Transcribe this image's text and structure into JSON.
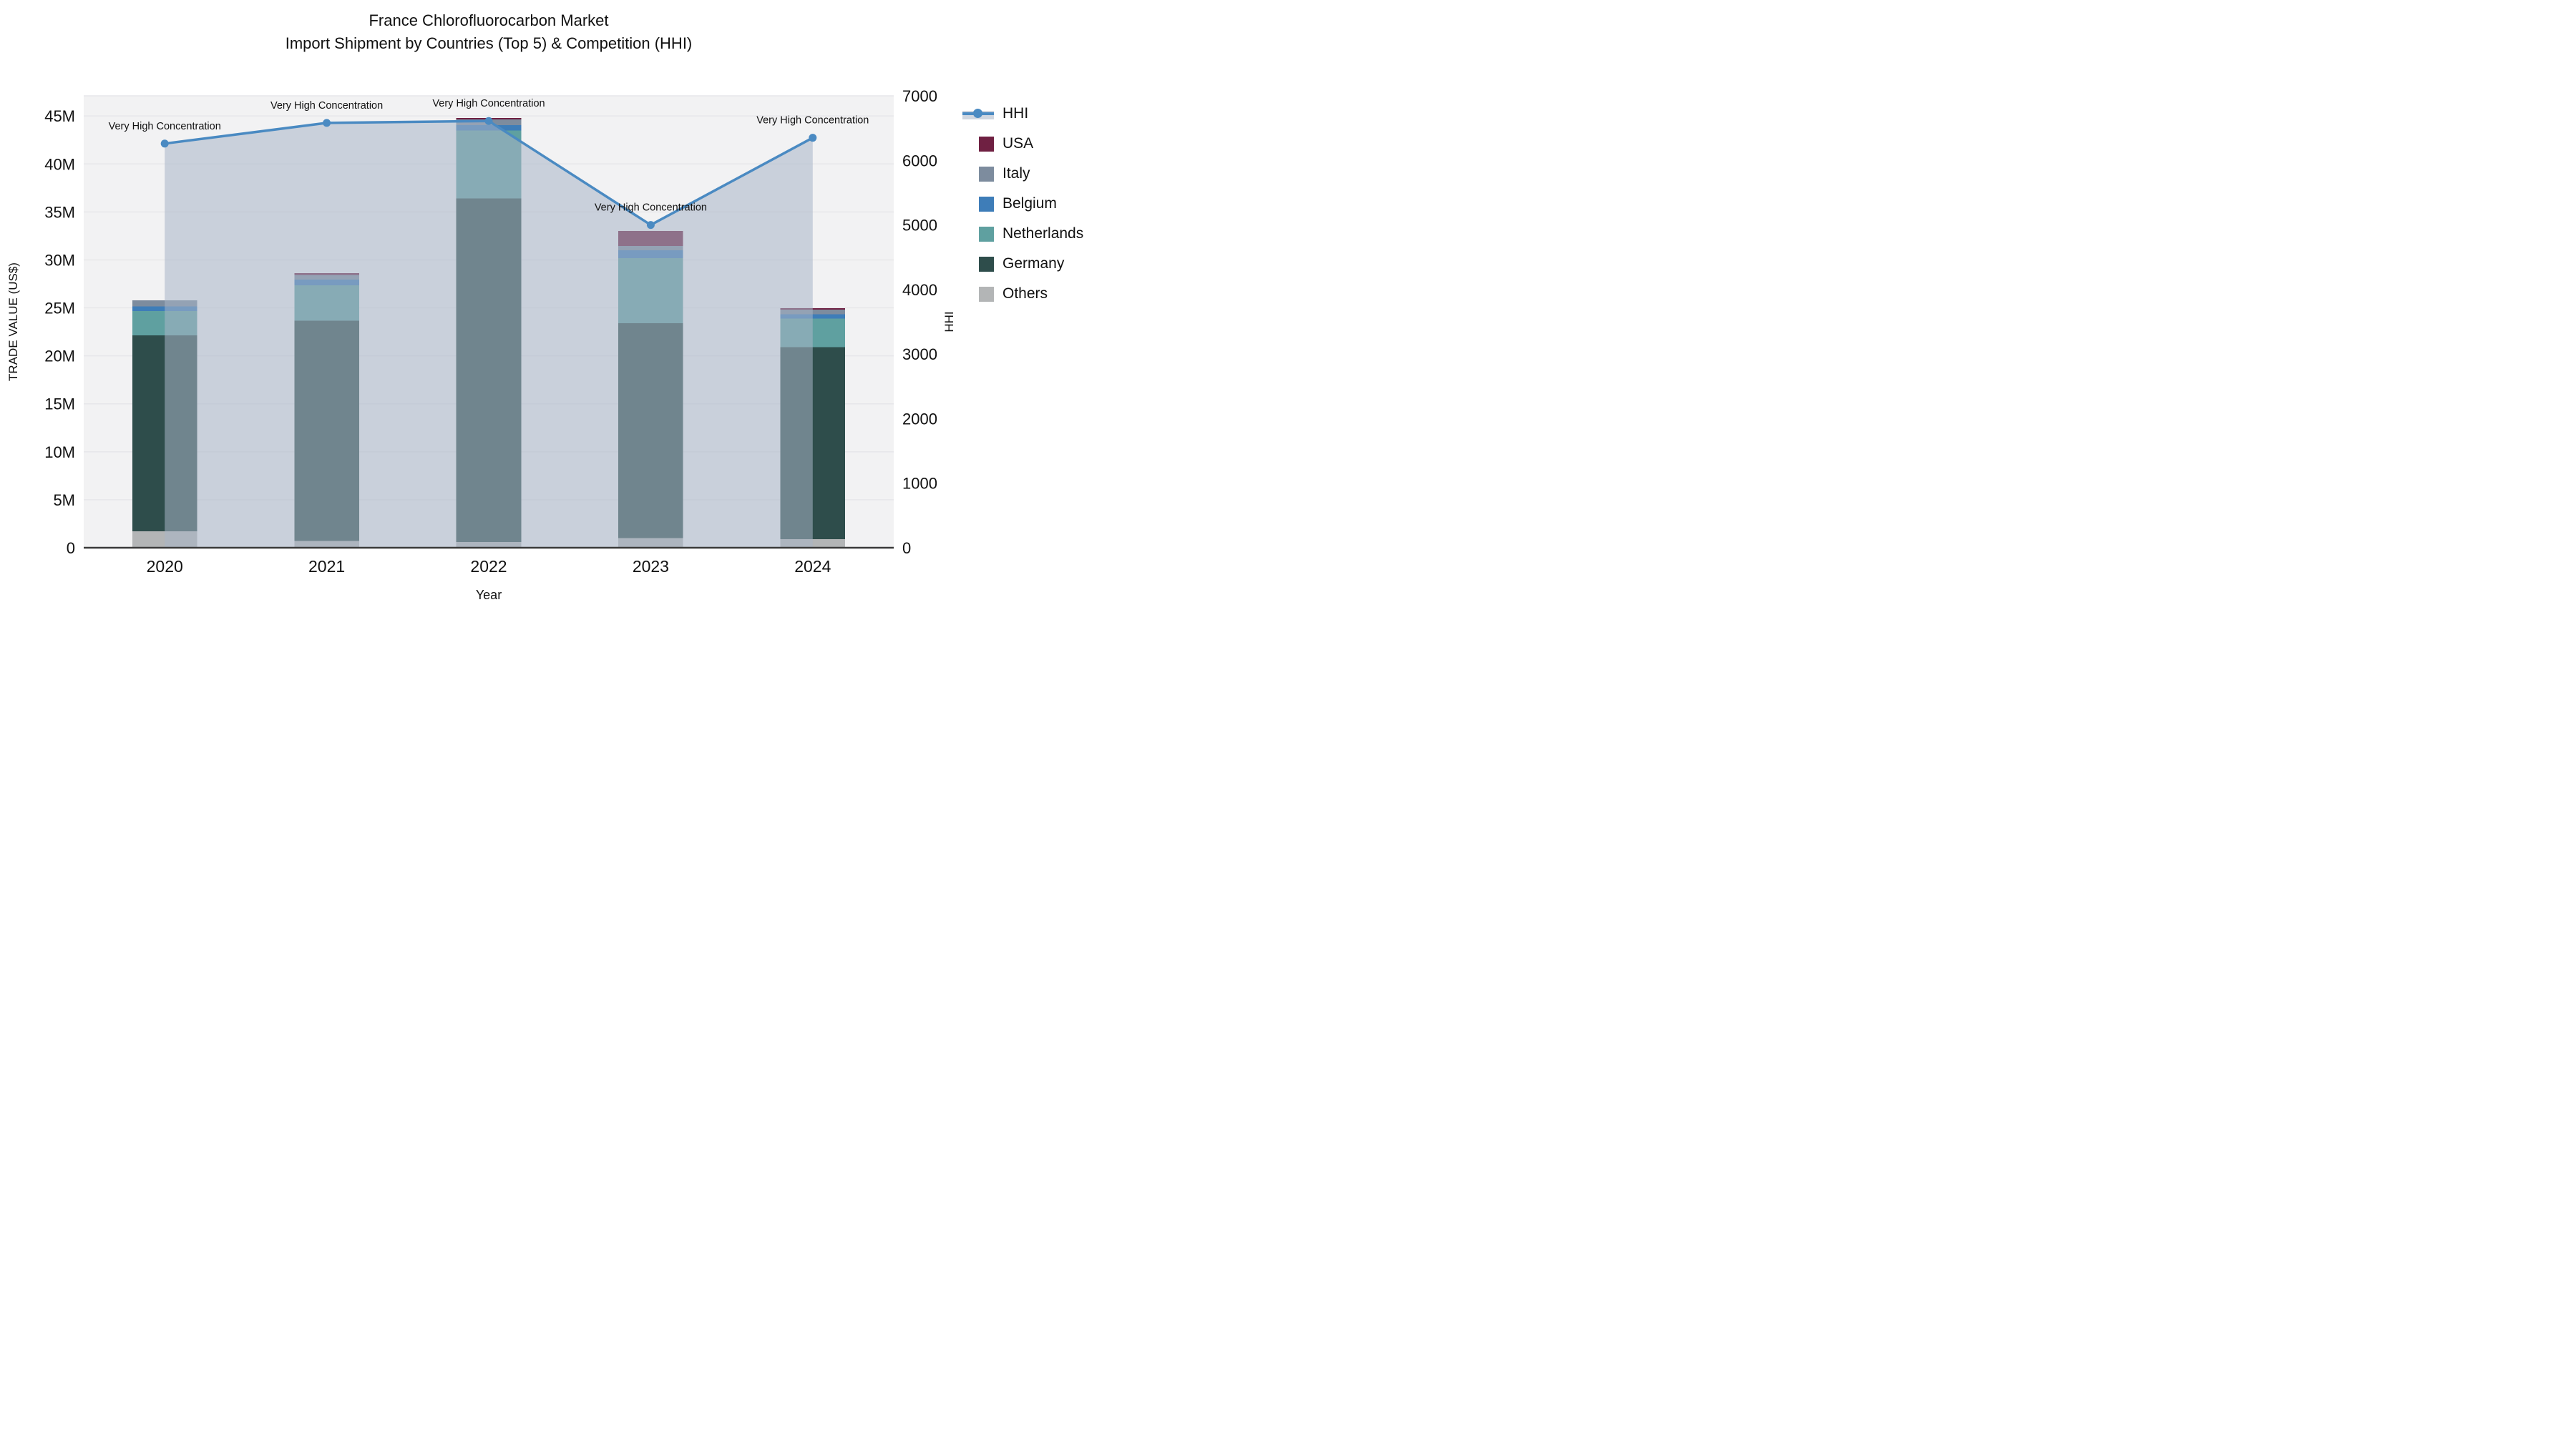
{
  "title": {
    "line1": "France Chlorofluorocarbon Market",
    "line2": "Import Shipment by Countries (Top 5) & Competition (HHI)"
  },
  "axes": {
    "x_title": "Year",
    "y_left_title": "TRADE VALUE (US$)",
    "y_right_title": "HHI",
    "x_tick_labels": [
      "2020",
      "2021",
      "2022",
      "2023",
      "2024"
    ],
    "y_left_tick_labels": [
      "0",
      "5M",
      "10M",
      "15M",
      "20M",
      "25M",
      "30M",
      "35M",
      "40M",
      "45M"
    ],
    "y_right_tick_labels": [
      "0",
      "1000",
      "2000",
      "3000",
      "4000",
      "5000",
      "6000",
      "7000"
    ]
  },
  "legend": {
    "items": [
      {
        "label": "HHI",
        "type": "line",
        "color": "#4a8ac2"
      },
      {
        "label": "USA",
        "type": "square",
        "color": "#6f2042"
      },
      {
        "label": "Italy",
        "type": "square",
        "color": "#7d8c9e"
      },
      {
        "label": "Belgium",
        "type": "square",
        "color": "#3e7db8"
      },
      {
        "label": "Netherlands",
        "type": "square",
        "color": "#5fa0a0"
      },
      {
        "label": "Germany",
        "type": "square",
        "color": "#2e4d4b"
      },
      {
        "label": "Others",
        "type": "square",
        "color": "#b3b5b6"
      }
    ]
  },
  "chart_data": {
    "type": "combo",
    "subtype": [
      "stacked-bar",
      "line-with-area"
    ],
    "categories": [
      "2020",
      "2021",
      "2022",
      "2023",
      "2024"
    ],
    "bar_units": "M US$",
    "bar_stack_order_bottom_to_top": [
      "Others",
      "Germany",
      "Netherlands",
      "Belgium",
      "Italy",
      "USA"
    ],
    "series": [
      {
        "name": "Others",
        "color": "#b3b5b6",
        "values": [
          1.7,
          0.7,
          0.6,
          1.0,
          0.9
        ]
      },
      {
        "name": "Germany",
        "color": "#2e4d4b",
        "values": [
          20.45,
          22.95,
          35.8,
          22.4,
          20.0
        ]
      },
      {
        "name": "Netherlands",
        "color": "#5fa0a0",
        "values": [
          2.5,
          3.7,
          7.1,
          6.8,
          3.0
        ]
      },
      {
        "name": "Belgium",
        "color": "#3e7db8",
        "values": [
          0.5,
          0.6,
          0.55,
          0.8,
          0.45
        ]
      },
      {
        "name": "Italy",
        "color": "#7d8c9e",
        "values": [
          0.65,
          0.5,
          0.6,
          0.45,
          0.45
        ]
      },
      {
        "name": "USA",
        "color": "#6f2042",
        "values": [
          0.0,
          0.15,
          0.15,
          1.55,
          0.15
        ]
      }
    ],
    "bar_totals": [
      25.8,
      28.6,
      44.8,
      33.0,
      24.95
    ],
    "line_series": {
      "name": "HHI",
      "values": [
        6260,
        6580,
        6610,
        5000,
        6350
      ],
      "color": "#4a8ac2",
      "area_fill": "rgba(167, 180, 199, 0.55)",
      "marker": "circle"
    },
    "annotations": [
      {
        "text": "Very High Concentration",
        "category": "2020",
        "hhi": 6260
      },
      {
        "text": "Very High Concentration",
        "category": "2021",
        "hhi": 6580
      },
      {
        "text": "Very High Concentration",
        "category": "2022",
        "hhi": 6610
      },
      {
        "text": "Very High Concentration",
        "category": "2023",
        "hhi": 5000
      },
      {
        "text": "Very High Concentration",
        "category": "2024",
        "hhi": 6350
      }
    ],
    "y_left": {
      "label": "TRADE VALUE (US$)",
      "range_m": [
        0,
        47.1
      ],
      "tick_step_m": 5,
      "grid": true
    },
    "y_right": {
      "label": "HHI",
      "range": [
        0,
        7000
      ],
      "tick_step": 1000,
      "grid": false
    },
    "xlabel": "Year",
    "legend_position": "right",
    "plot_bg": "#f2f2f3",
    "grid_color": "#e7e7ea",
    "axis_line_color": "#3a3a3a",
    "bar_width_fraction": 0.4
  }
}
